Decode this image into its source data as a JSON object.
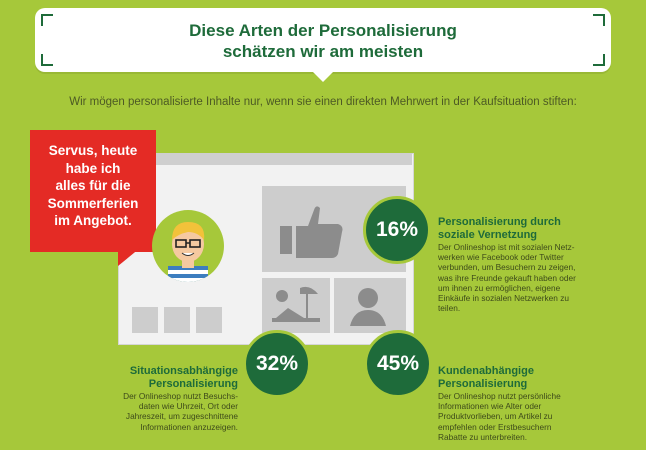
{
  "title_line1": "Diese Arten der Personalisierung",
  "title_line2": "schätzen wir am meisten",
  "subtitle": "Wir mögen personalisierte Inhalte nur, wenn sie einen direkten Mehrwert in der Kaufsituation stiften:",
  "bubble": {
    "lines": [
      "Servus, heute",
      "habe ich",
      "alles für die",
      "Sommerferien",
      "im Angebot."
    ]
  },
  "items": [
    {
      "percent": "16%",
      "heading": [
        "Personalisierung durch",
        "soziale Vernetzung"
      ],
      "text": [
        "Der Onlineshop ist mit sozialen  Netz-",
        "werken wie Facebook oder Twitter",
        "verbunden, um Besuchern zu zeigen,",
        "was ihre Freunde gekauft haben oder",
        "um ihnen zu ermöglichen, eigene",
        "Einkäufe in sozialen Netzwerken zu",
        "teilen."
      ]
    },
    {
      "percent": "32%",
      "heading": [
        "Situationsabhängige",
        "Personalisierung"
      ],
      "text": [
        "Der Onlineshop nutzt Besuchs-",
        "daten wie Uhrzeit, Ort oder",
        "Jahreszeit, um zugeschnittene",
        "Informationen anzuzeigen."
      ]
    },
    {
      "percent": "45%",
      "heading": [
        "Kundenabhängige",
        "Personalisierung"
      ],
      "text": [
        "Der Onlineshop nutzt persönliche",
        "Informationen wie Alter oder",
        "Produktvorlieben, um Artikel zu",
        "empfehlen oder Erstbesuchern",
        "Rabatte zu unterbreiten."
      ]
    }
  ],
  "colors": {
    "background": "#a6c83a",
    "green": "#1e6b3a",
    "red": "#e42b25"
  },
  "icons": [
    "thumbs-up-icon",
    "beach-icon",
    "person-icon"
  ]
}
